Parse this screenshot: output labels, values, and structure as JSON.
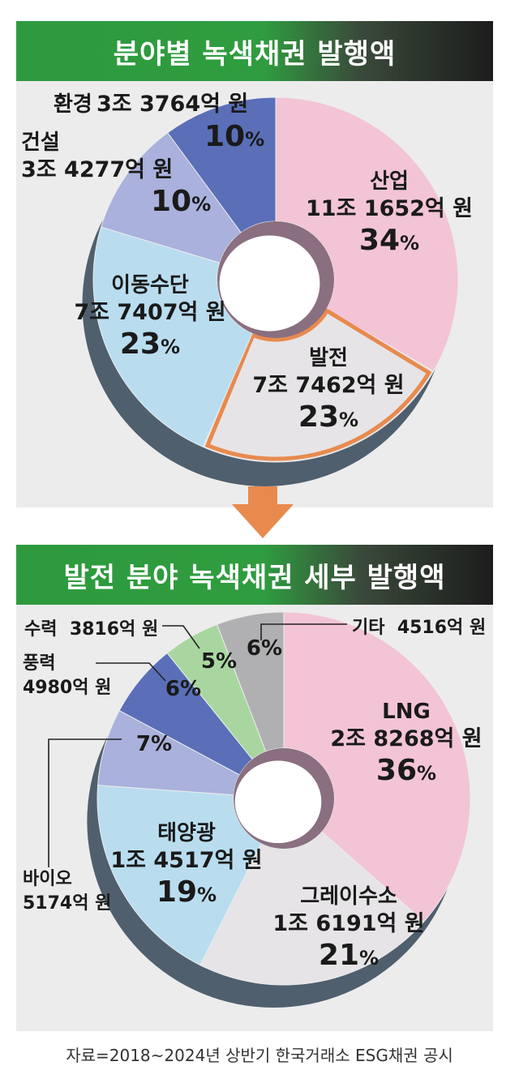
{
  "title1": "분야별 녹색채권 발행액",
  "title2": "발전 분야 녹색채권 세부 발행액",
  "source": "자료=2018~2024년 상반기 한국거래소 ESG채권 공시",
  "chart_data": [
    {
      "type": "pie",
      "title": "분야별 녹색채권 발행액",
      "unit": "원",
      "slices": [
        {
          "name": "산업",
          "amount": "11조 1652억 원",
          "value_eok": 111652,
          "percent": 34,
          "color": "#f2c4d6"
        },
        {
          "name": "발전",
          "amount": "7조 7462억 원",
          "value_eok": 77462,
          "percent": 23,
          "color": "#e6e4e6"
        },
        {
          "name": "이동수단",
          "amount": "7조 7407억 원",
          "value_eok": 77407,
          "percent": 23,
          "color": "#b9ddef"
        },
        {
          "name": "건설",
          "amount": "3조 4277억 원",
          "value_eok": 34277,
          "percent": 10,
          "color": "#a9b1dc"
        },
        {
          "name": "환경",
          "amount": "3조 3764억 원",
          "value_eok": 33764,
          "percent": 10,
          "color": "#5a6fb8"
        }
      ]
    },
    {
      "type": "pie",
      "title": "발전 분야 녹색채권 세부 발행액",
      "unit": "원",
      "slices": [
        {
          "name": "LNG",
          "amount": "2조 8268억 원",
          "value_eok": 28268,
          "percent": 36,
          "color": "#f2c4d6"
        },
        {
          "name": "그레이수소",
          "amount": "1조 6191억 원",
          "value_eok": 16191,
          "percent": 21,
          "color": "#e6e4e6"
        },
        {
          "name": "태양광",
          "amount": "1조 4517억 원",
          "value_eok": 14517,
          "percent": 19,
          "color": "#b9ddef"
        },
        {
          "name": "바이오",
          "amount": "5174억 원",
          "value_eok": 5174,
          "percent": 7,
          "color": "#a9b1dc"
        },
        {
          "name": "풍력",
          "amount": "4980억 원",
          "value_eok": 4980,
          "percent": 6,
          "color": "#5a6fb8"
        },
        {
          "name": "수력",
          "amount": "3816억 원",
          "value_eok": 3816,
          "percent": 5,
          "color": "#a9d6a0"
        },
        {
          "name": "기타",
          "amount": "4516억 원",
          "value_eok": 4516,
          "percent": 6,
          "color": "#b0b0b2"
        }
      ]
    }
  ]
}
